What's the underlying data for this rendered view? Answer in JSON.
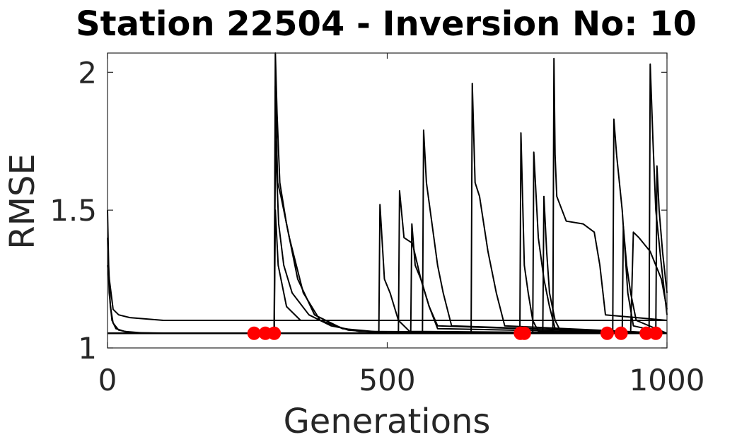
{
  "chart_data": {
    "type": "line",
    "title": "Station 22504 - Inversion No: 10",
    "xlabel": "Generations",
    "ylabel": "RMSE",
    "xlim": [
      0,
      1000
    ],
    "ylim": [
      1,
      2.07
    ],
    "xticks": [
      0,
      500,
      1000
    ],
    "yticks": [
      1,
      1.5,
      2
    ],
    "xtick_labels": [
      "0",
      "500",
      "1000"
    ],
    "ytick_labels": [
      "1",
      "1.5",
      "2"
    ],
    "grid": false,
    "line_color": "#000000",
    "marker_color": "#ff0000",
    "baseline_rmse": 1.053,
    "series": [
      {
        "x": [
          0,
          2,
          5,
          10,
          20,
          40,
          80,
          150,
          300,
          1000
        ],
        "y": [
          1.5,
          1.3,
          1.15,
          1.09,
          1.065,
          1.056,
          1.054,
          1.053,
          1.053,
          1.053
        ]
      },
      {
        "x": [
          0,
          3,
          8,
          15,
          30,
          60,
          100,
          300,
          1000
        ],
        "y": [
          1.4,
          1.2,
          1.1,
          1.07,
          1.06,
          1.055,
          1.054,
          1.053,
          1.053
        ]
      },
      {
        "x": [
          0,
          5,
          10,
          20,
          40,
          100,
          200,
          300,
          1000
        ],
        "y": [
          1.3,
          1.22,
          1.14,
          1.12,
          1.11,
          1.1,
          1.1,
          1.1,
          1.1
        ]
      },
      {
        "x": [
          0,
          298,
          300,
          303,
          308,
          320,
          340,
          370,
          420,
          500,
          1000
        ],
        "y": [
          1.053,
          1.053,
          2.07,
          1.85,
          1.6,
          1.45,
          1.25,
          1.12,
          1.07,
          1.055,
          1.053
        ]
      },
      {
        "x": [
          0,
          298,
          300,
          304,
          310,
          325,
          350,
          380,
          430,
          500,
          1000
        ],
        "y": [
          1.053,
          1.053,
          1.95,
          1.6,
          1.55,
          1.4,
          1.2,
          1.1,
          1.065,
          1.054,
          1.053
        ]
      },
      {
        "x": [
          0,
          298,
          300,
          306,
          315,
          330,
          360,
          400,
          450,
          1000
        ],
        "y": [
          1.053,
          1.053,
          1.75,
          1.45,
          1.3,
          1.2,
          1.12,
          1.08,
          1.06,
          1.053
        ]
      },
      {
        "x": [
          0,
          298,
          300,
          305,
          320,
          345,
          380,
          420,
          1000
        ],
        "y": [
          1.053,
          1.053,
          1.5,
          1.3,
          1.15,
          1.1,
          1.1,
          1.1,
          1.1
        ]
      },
      {
        "x": [
          0,
          485,
          487,
          495,
          505,
          520,
          540,
          1000
        ],
        "y": [
          1.053,
          1.053,
          1.52,
          1.25,
          1.2,
          1.1,
          1.06,
          1.053
        ]
      },
      {
        "x": [
          0,
          520,
          522,
          530,
          545,
          560,
          575,
          590,
          1000
        ],
        "y": [
          1.053,
          1.053,
          1.57,
          1.4,
          1.38,
          1.25,
          1.15,
          1.08,
          1.053
        ]
      },
      {
        "x": [
          0,
          542,
          544,
          550,
          560,
          575,
          590,
          1000
        ],
        "y": [
          1.053,
          1.053,
          1.45,
          1.3,
          1.25,
          1.15,
          1.07,
          1.053
        ]
      },
      {
        "x": [
          0,
          563,
          565,
          570,
          580,
          590,
          600,
          615,
          1000
        ],
        "y": [
          1.053,
          1.053,
          1.79,
          1.6,
          1.45,
          1.3,
          1.2,
          1.08,
          1.053
        ]
      },
      {
        "x": [
          0,
          650,
          652,
          657,
          665,
          680,
          695,
          710,
          1000
        ],
        "y": [
          1.053,
          1.053,
          1.96,
          1.6,
          1.55,
          1.35,
          1.2,
          1.08,
          1.053
        ]
      },
      {
        "x": [
          0,
          737,
          739,
          745,
          752,
          760,
          770,
          1000
        ],
        "y": [
          1.053,
          1.053,
          1.78,
          1.3,
          1.2,
          1.1,
          1.06,
          1.053
        ]
      },
      {
        "x": [
          0,
          760,
          762,
          770,
          780,
          790,
          800,
          1000
        ],
        "y": [
          1.053,
          1.053,
          1.71,
          1.4,
          1.25,
          1.15,
          1.07,
          1.053
        ]
      },
      {
        "x": [
          0,
          778,
          780,
          785,
          790,
          800,
          810,
          1000
        ],
        "y": [
          1.053,
          1.053,
          1.55,
          1.35,
          1.2,
          1.1,
          1.06,
          1.053
        ]
      },
      {
        "x": [
          0,
          796,
          798,
          800,
          803,
          820,
          850,
          870,
          880,
          890,
          1000
        ],
        "y": [
          1.053,
          1.053,
          2.05,
          1.7,
          1.55,
          1.46,
          1.45,
          1.42,
          1.3,
          1.12,
          1.1
        ]
      },
      {
        "x": [
          0,
          903,
          905,
          910,
          920,
          930,
          940,
          1000
        ],
        "y": [
          1.053,
          1.053,
          1.83,
          1.7,
          1.5,
          1.2,
          1.08,
          1.053
        ]
      },
      {
        "x": [
          0,
          920,
          922,
          928,
          935,
          945,
          1000
        ],
        "y": [
          1.053,
          1.053,
          1.44,
          1.3,
          1.2,
          1.1,
          1.053
        ]
      },
      {
        "x": [
          0,
          968,
          970,
          975,
          980,
          990,
          1000
        ],
        "y": [
          1.053,
          1.053,
          2.03,
          1.75,
          1.5,
          1.3,
          1.12
        ]
      },
      {
        "x": [
          0,
          980,
          982,
          986,
          992,
          1000
        ],
        "y": [
          1.053,
          1.053,
          1.66,
          1.5,
          1.35,
          1.2
        ]
      },
      {
        "x": [
          0,
          935,
          940,
          950,
          970,
          990,
          1000
        ],
        "y": [
          1.053,
          1.053,
          1.42,
          1.4,
          1.35,
          1.25,
          1.14
        ]
      }
    ],
    "markers": {
      "x": [
        262,
        282,
        298,
        738,
        745,
        893,
        918,
        963,
        980
      ],
      "y": [
        1.053,
        1.053,
        1.053,
        1.053,
        1.053,
        1.053,
        1.053,
        1.053,
        1.053
      ]
    }
  }
}
